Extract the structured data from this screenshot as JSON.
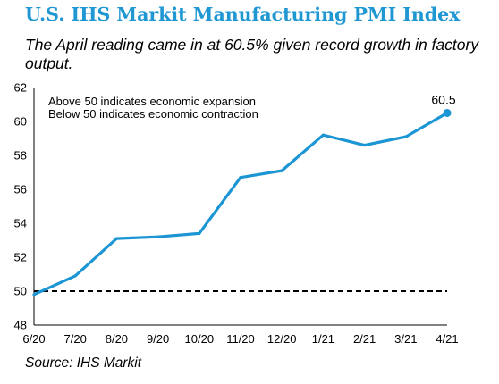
{
  "chart_data": {
    "type": "line",
    "title": "U.S. IHS Markit Manufacturing PMI Index",
    "subtitle": "The April reading came in at 60.5% given record growth in factory output.",
    "source": "Source: IHS Markit",
    "categories": [
      "6/20",
      "7/20",
      "8/20",
      "9/20",
      "10/20",
      "11/20",
      "12/20",
      "1/21",
      "2/21",
      "3/21",
      "4/21"
    ],
    "series": [
      {
        "values": [
          49.8,
          50.9,
          53.1,
          53.2,
          53.4,
          56.7,
          57.1,
          59.2,
          58.6,
          59.1,
          60.5
        ]
      }
    ],
    "ylim": [
      48,
      62
    ],
    "yticks": [
      "48",
      "50",
      "52",
      "54",
      "56",
      "58",
      "60",
      "62"
    ],
    "reference_line": {
      "value": 50,
      "style": "dashed"
    },
    "annotations": [
      "Above 50 indicates economic expansion",
      "Below 50 indicates economic contraction"
    ],
    "data_labels": [
      {
        "index": 10,
        "text": "60.5"
      }
    ],
    "line_color": "#1b95d3",
    "grid": false,
    "legend": "none"
  }
}
